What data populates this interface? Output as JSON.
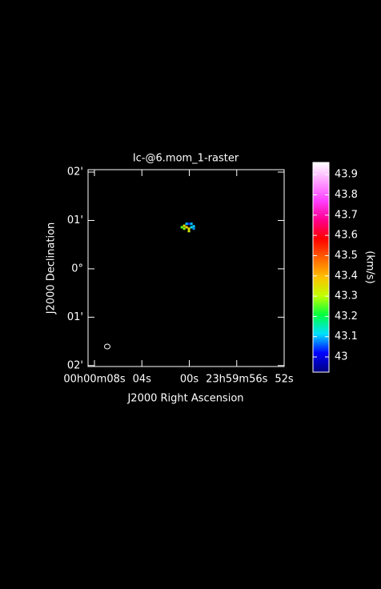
{
  "chart_data": {
    "type": "raster",
    "title": "Ic-@6.mom_1-raster",
    "x_label": "J2000 Right Ascension",
    "y_label": "J2000 Declination",
    "colorbar_label": "(km/s)",
    "xlim": [
      8.54,
      -8
    ],
    "xticks": [
      {
        "value": 8,
        "label": "00h00m08s"
      },
      {
        "value": 4,
        "label": "04s"
      },
      {
        "value": 0,
        "label": "00s"
      },
      {
        "value": -4,
        "label": "23h59m56s"
      },
      {
        "value": -8,
        "label": "52s"
      }
    ],
    "ylim": [
      -2.02,
      2.05
    ],
    "yticks": [
      {
        "value": 2,
        "label": "02'"
      },
      {
        "value": 1,
        "label": "01'"
      },
      {
        "value": 0,
        "label": "0°"
      },
      {
        "value": -1,
        "label": "01'"
      },
      {
        "value": -2,
        "label": "02'"
      }
    ],
    "clim": [
      42.925,
      43.96
    ],
    "cticks": [
      43,
      43.1,
      43.2,
      43.3,
      43.4,
      43.5,
      43.6,
      43.7,
      43.8,
      43.9
    ],
    "colormap": [
      "#000080",
      "#0000ff",
      "#00e0ff",
      "#00ff40",
      "#c0ff00",
      "#ffc000",
      "#ff6000",
      "#ff0000",
      "#ff0090",
      "#ff40ff",
      "#ffa0ff",
      "#ffffff"
    ],
    "x": [
      0.63,
      0.43,
      0.23,
      0.03,
      -0.18,
      -0.38,
      0.23,
      0.03,
      -0.18,
      -0.38,
      0.03,
      0.43
    ],
    "y": [
      0.86,
      0.89,
      0.93,
      0.93,
      0.93,
      0.88,
      0.86,
      0.83,
      0.86,
      0.83,
      0.78,
      0.83
    ],
    "values": [
      43.25,
      43.35,
      43.1,
      43.04,
      43.1,
      43.1,
      43.38,
      43.35,
      43.12,
      43.08,
      43.33,
      43.27
    ]
  }
}
